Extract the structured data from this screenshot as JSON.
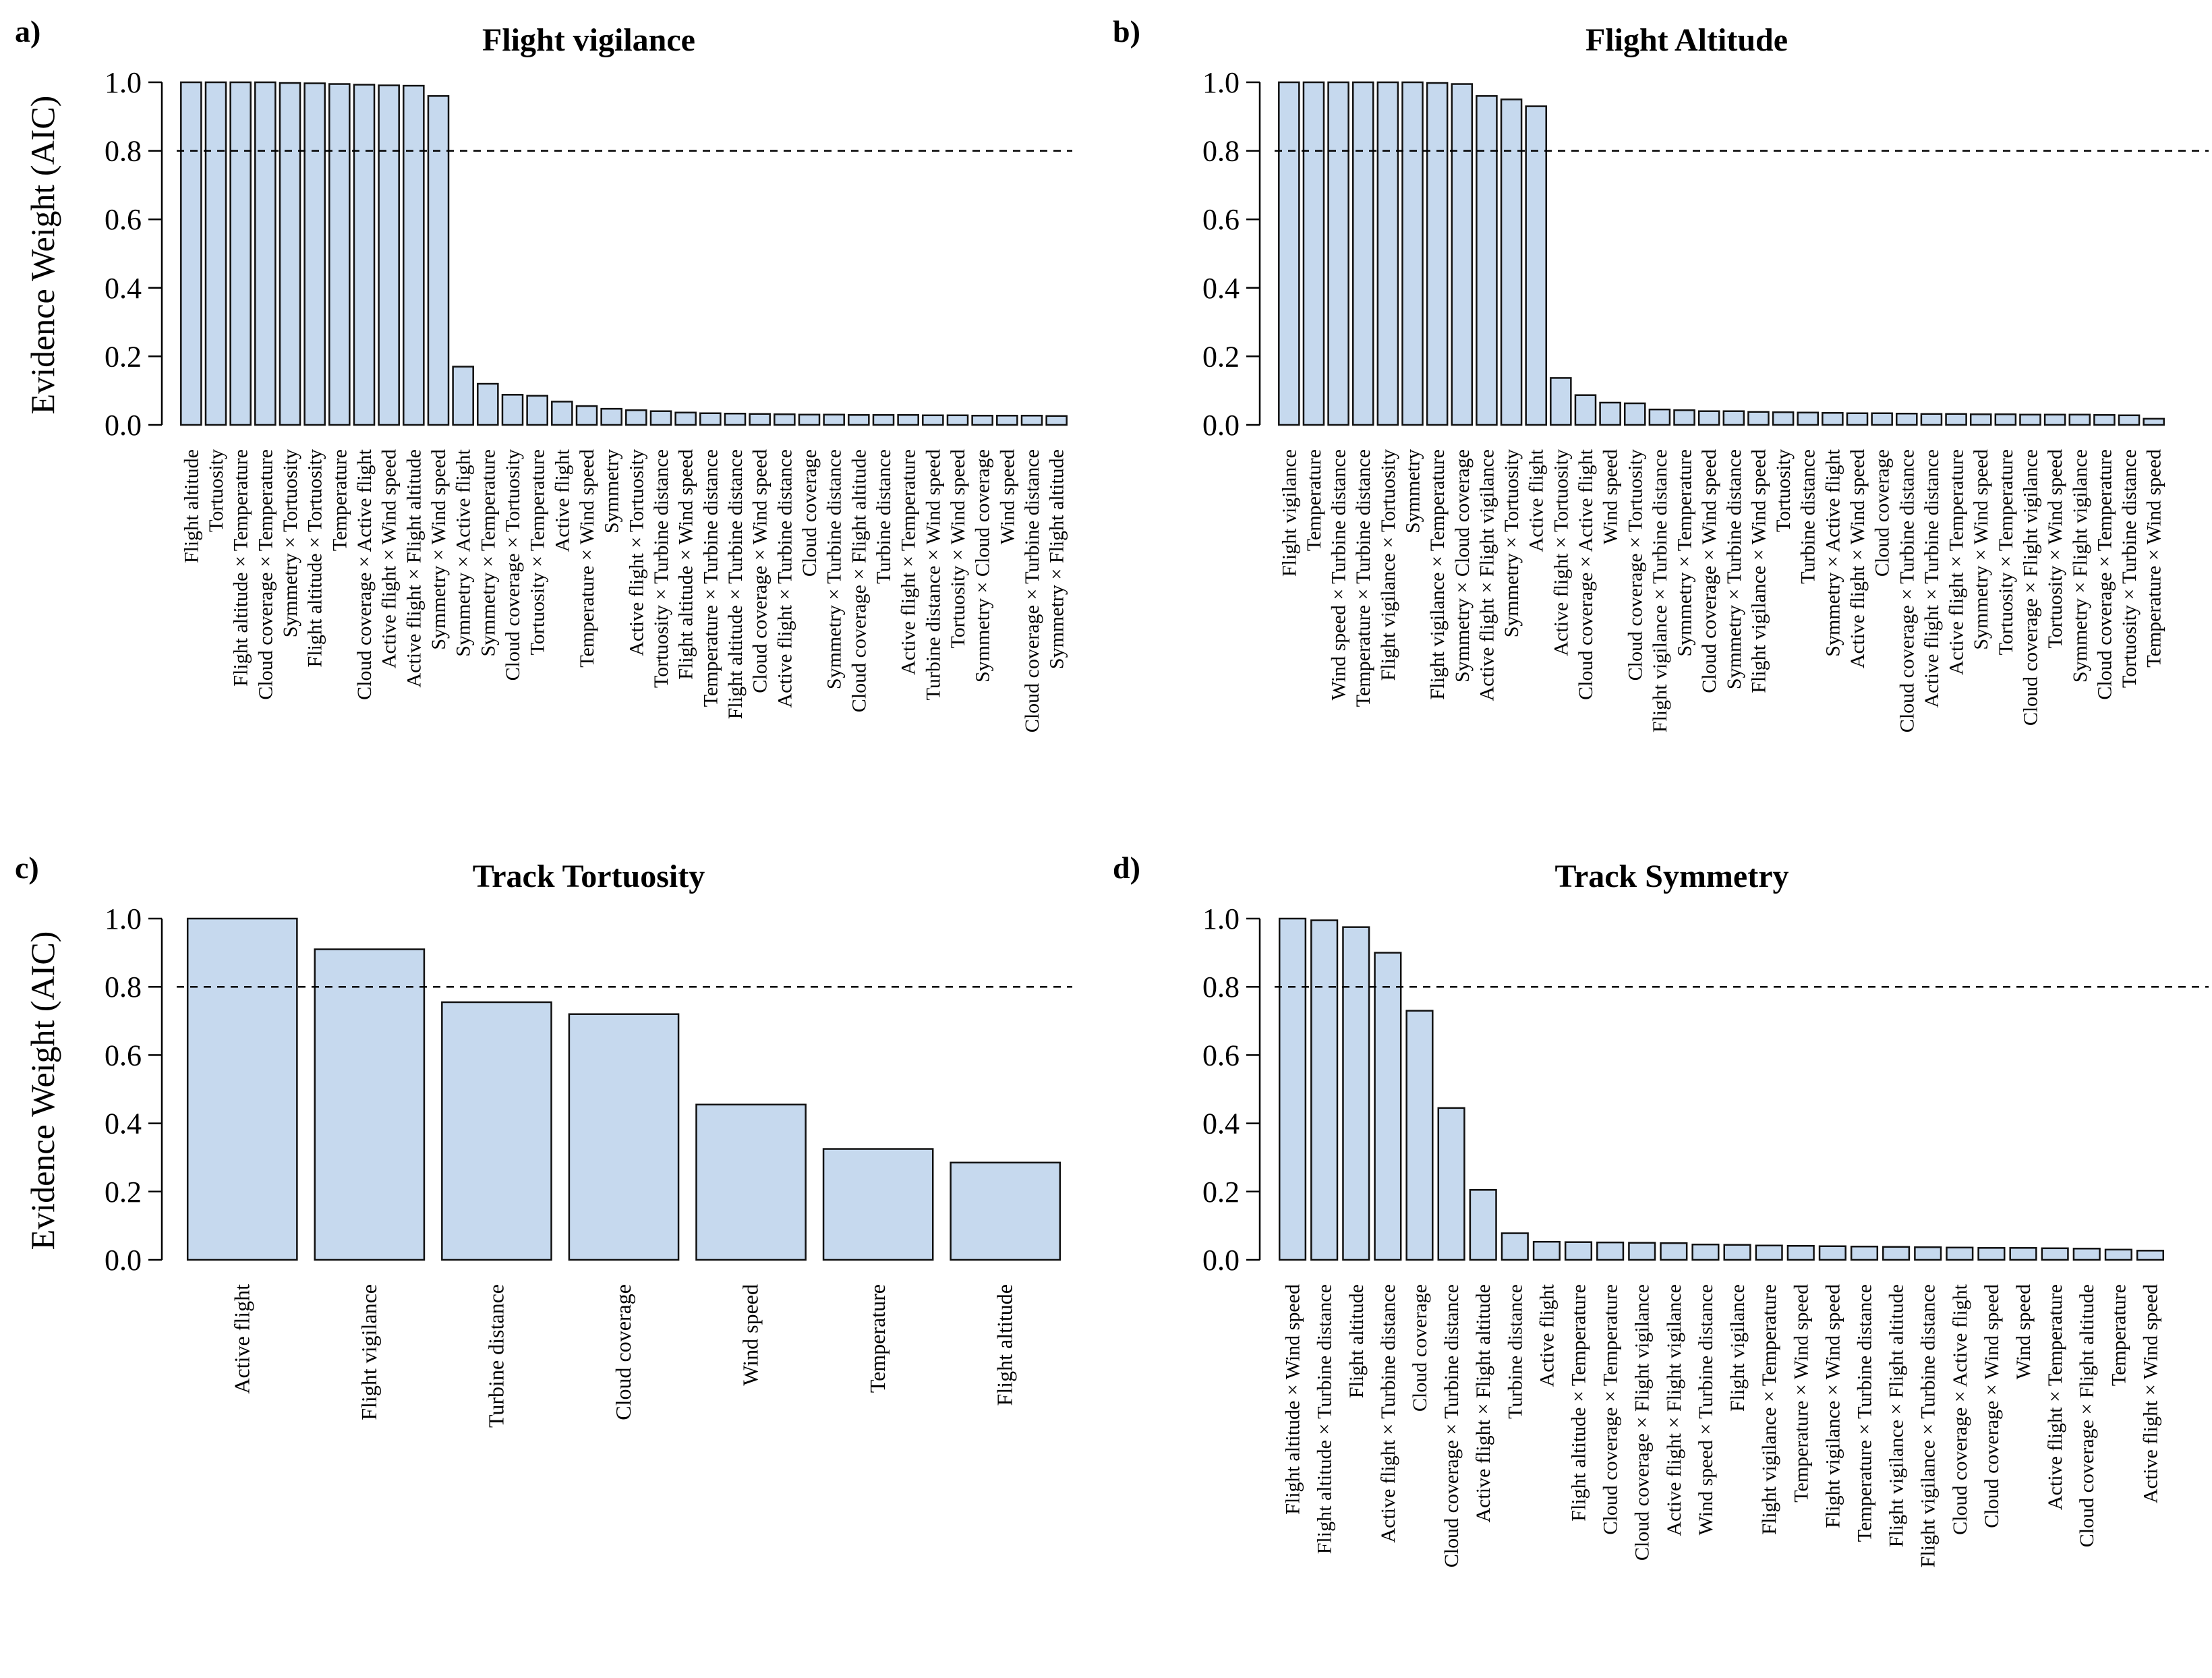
{
  "chart_data": [
    {
      "type": "bar",
      "panel_label": "a)",
      "title": "Flight vigilance",
      "ylabel": "Evidence Weight (AIC)",
      "ylim": [
        0,
        1.0
      ],
      "yticks": [
        "0.0",
        "0.2",
        "0.4",
        "0.6",
        "0.8",
        "1.0"
      ],
      "threshold": 0.8,
      "categories": [
        "Flight altitude",
        "Tortuosity",
        "Flight altitude × Temperature",
        "Cloud coverage × Temperature",
        "Symmetry × Tortuosity",
        "Flight altitude × Tortuosity",
        "Temperature",
        "Cloud coverage × Active flight",
        "Active flight × Wind speed",
        "Active flight × Flight altitude",
        "Symmetry × Wind speed",
        "Symmetry × Active flight",
        "Symmetry × Temperature",
        "Cloud coverage × Tortuosity",
        "Tortuosity × Temperature",
        "Active flight",
        "Temperature × Wind speed",
        "Symmetry",
        "Active flight × Tortuosity",
        "Tortuosity × Turbine distance",
        "Flight altitude × Wind speed",
        "Temperature × Turbine distance",
        "Flight altitude × Turbine distance",
        "Cloud coverage × Wind speed",
        "Active flight × Turbine distance",
        "Cloud coverage",
        "Symmetry × Turbine distance",
        "Cloud coverage × Flight altitude",
        "Turbine distance",
        "Active flight × Temperature",
        "Turbine distance × Wind speed",
        "Tortuosity × Wind speed",
        "Symmetry × Cloud coverage",
        "Wind speed",
        "Cloud coverage × Turbine distance",
        "Symmetry × Flight altitude"
      ],
      "values": [
        1.0,
        1.0,
        1.0,
        1.0,
        0.998,
        0.997,
        0.995,
        0.993,
        0.991,
        0.99,
        0.96,
        0.17,
        0.12,
        0.088,
        0.085,
        0.068,
        0.055,
        0.047,
        0.043,
        0.04,
        0.036,
        0.034,
        0.033,
        0.032,
        0.031,
        0.03,
        0.03,
        0.029,
        0.029,
        0.029,
        0.028,
        0.028,
        0.027,
        0.027,
        0.027,
        0.026
      ]
    },
    {
      "type": "bar",
      "panel_label": "b)",
      "title": "Flight Altitude",
      "ylabel": "",
      "ylim": [
        0,
        1.0
      ],
      "yticks": [
        "0.0",
        "0.2",
        "0.4",
        "0.6",
        "0.8",
        "1.0"
      ],
      "threshold": 0.8,
      "categories": [
        "Flight vigilance",
        "Temperature",
        "Wind speed × Turbine distance",
        "Temperature × Turbine distance",
        "Flight vigilance × Tortuosity",
        "Symmetry",
        "Flight vigilance × Temperature",
        "Symmetry × Cloud coverage",
        "Active flight × Flight vigilance",
        "Symmetry × Tortuosity",
        "Active flight",
        "Active flight × Tortuosity",
        "Cloud coverage × Active flight",
        "Wind speed",
        "Cloud coverage × Tortuosity",
        "Flight vigilance × Turbine distance",
        "Symmetry × Temperature",
        "Cloud coverage × Wind speed",
        "Symmetry × Turbine distance",
        "Flight vigilance × Wind speed",
        "Tortuosity",
        "Turbine distance",
        "Symmetry × Active flight",
        "Active flight × Wind speed",
        "Cloud coverage",
        "Cloud coverage × Turbine distance",
        "Active flight × Turbine distance",
        "Active flight × Temperature",
        "Symmetry × Wind speed",
        "Tortuosity × Temperature",
        "Cloud coverage × Flight vigilance",
        "Tortuosity × Wind speed",
        "Symmetry × Flight vigilance",
        "Cloud coverage × Temperature",
        "Tortuosity × Turbine distance",
        "Temperature × Wind speed"
      ],
      "values": [
        1.0,
        1.0,
        1.0,
        1.0,
        1.0,
        1.0,
        0.998,
        0.995,
        0.96,
        0.95,
        0.93,
        0.137,
        0.087,
        0.065,
        0.063,
        0.045,
        0.043,
        0.04,
        0.04,
        0.038,
        0.037,
        0.036,
        0.035,
        0.034,
        0.034,
        0.033,
        0.032,
        0.032,
        0.031,
        0.031,
        0.03,
        0.03,
        0.03,
        0.029,
        0.028,
        0.018
      ]
    },
    {
      "type": "bar",
      "panel_label": "c)",
      "title": "Track Tortuosity",
      "ylabel": "Evidence Weight (AIC)",
      "ylim": [
        0,
        1.0
      ],
      "yticks": [
        "0.0",
        "0.2",
        "0.4",
        "0.6",
        "0.8",
        "1.0"
      ],
      "threshold": 0.8,
      "categories": [
        "Active flight",
        "Flight vigilance",
        "Turbine distance",
        "Cloud coverage",
        "Wind speed",
        "Temperature",
        "Flight altitude"
      ],
      "values": [
        1.0,
        0.91,
        0.755,
        0.72,
        0.455,
        0.325,
        0.285
      ]
    },
    {
      "type": "bar",
      "panel_label": "d)",
      "title": "Track Symmetry",
      "ylabel": "",
      "ylim": [
        0,
        1.0
      ],
      "yticks": [
        "0.0",
        "0.2",
        "0.4",
        "0.6",
        "0.8",
        "1.0"
      ],
      "threshold": 0.8,
      "categories": [
        "Flight altitude × Wind speed",
        "Flight altitude × Turbine distance",
        "Flight altitude",
        "Active flight × Turbine distance",
        "Cloud coverage",
        "Cloud coverage × Turbine distance",
        "Active flight × Flight altitude",
        "Turbine distance",
        "Active flight",
        "Flight altitude × Temperature",
        "Cloud coverage × Temperature",
        "Cloud coverage × Flight vigilance",
        "Active flight × Flight vigilance",
        "Wind speed × Turbine distance",
        "Flight vigilance",
        "Flight vigilance × Temperature",
        "Temperature × Wind speed",
        "Flight vigilance × Wind speed",
        "Temperature × Turbine distance",
        "Flight vigilance × Flight altitude",
        "Flight vigilance × Turbine distance",
        "Cloud coverage × Active flight",
        "Cloud coverage × Wind speed",
        "Wind speed",
        "Active flight × Temperature",
        "Cloud coverage × Flight altitude",
        "Temperature",
        "Active flight × Wind speed"
      ],
      "values": [
        1.0,
        0.995,
        0.975,
        0.9,
        0.73,
        0.445,
        0.205,
        0.078,
        0.053,
        0.052,
        0.051,
        0.05,
        0.049,
        0.045,
        0.044,
        0.042,
        0.041,
        0.04,
        0.039,
        0.038,
        0.037,
        0.036,
        0.035,
        0.035,
        0.034,
        0.033,
        0.03,
        0.027
      ]
    }
  ]
}
